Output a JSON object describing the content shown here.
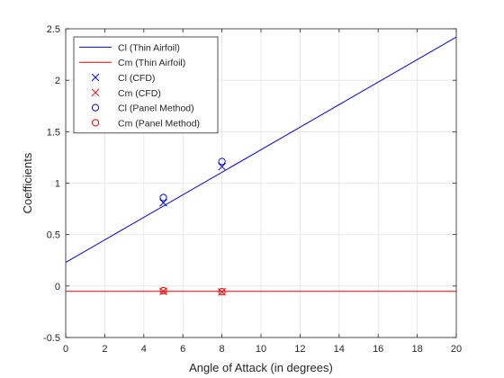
{
  "chart_data": {
    "type": "line",
    "title": "",
    "xlabel": "Angle of Attack (in degrees)",
    "ylabel": "Coefficients",
    "xlim": [
      0,
      20
    ],
    "ylim": [
      -0.5,
      2.5
    ],
    "xticks": [
      0,
      2,
      4,
      6,
      8,
      10,
      12,
      14,
      16,
      18,
      20
    ],
    "yticks": [
      -0.5,
      0,
      0.5,
      1,
      1.5,
      2,
      2.5
    ],
    "xtick_labels": [
      "0",
      "2",
      "4",
      "6",
      "8",
      "10",
      "12",
      "14",
      "16",
      "18",
      "20"
    ],
    "ytick_labels": [
      "-0.5",
      "0",
      "0.5",
      "1",
      "1.5",
      "2",
      "2.5"
    ],
    "grid": true,
    "legend_position": "top-left",
    "series": [
      {
        "name": "Cl (Thin Airfoil)",
        "kind": "line",
        "color": "#0000ff",
        "x": [
          0,
          20
        ],
        "y": [
          0.23,
          2.42
        ]
      },
      {
        "name": "Cm (Thin Airfoil)",
        "kind": "line",
        "color": "#ff0000",
        "x": [
          0,
          20
        ],
        "y": [
          -0.052,
          -0.052
        ]
      },
      {
        "name": "Cl (CFD)",
        "kind": "marker",
        "marker": "x",
        "color": "#0000ff",
        "x": [
          5,
          8
        ],
        "y": [
          0.81,
          1.16
        ]
      },
      {
        "name": "Cm (CFD)",
        "kind": "marker",
        "marker": "x",
        "color": "#ff0000",
        "x": [
          5,
          8
        ],
        "y": [
          -0.052,
          -0.057
        ]
      },
      {
        "name": "Cl (Panel Method)",
        "kind": "marker",
        "marker": "o",
        "color": "#0000ff",
        "x": [
          5,
          8
        ],
        "y": [
          0.86,
          1.21
        ]
      },
      {
        "name": "Cm (Panel Method)",
        "kind": "marker",
        "marker": "o",
        "color": "#ff0000",
        "x": [
          5,
          8
        ],
        "y": [
          -0.045,
          -0.055
        ]
      }
    ]
  }
}
